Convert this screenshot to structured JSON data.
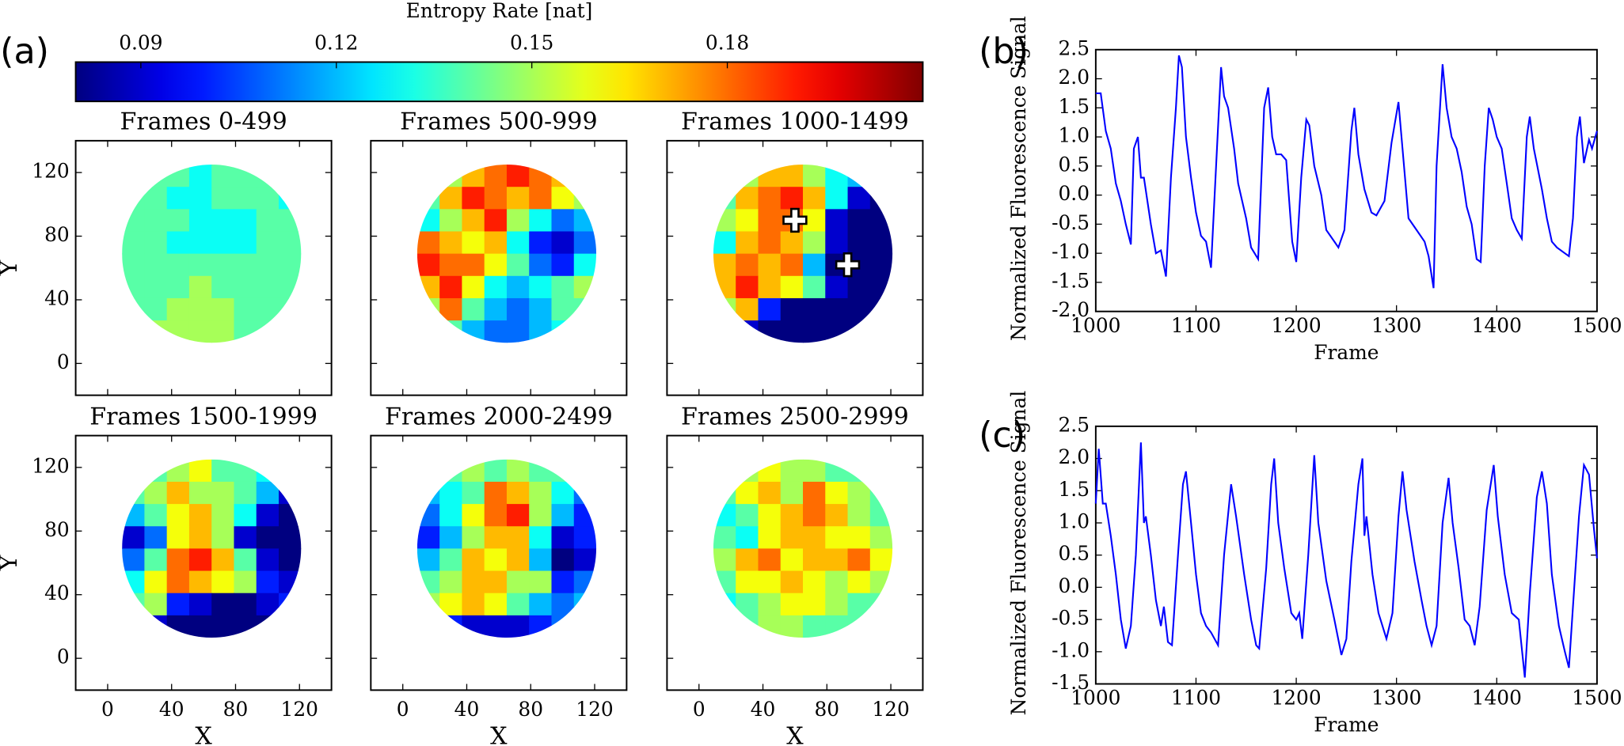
{
  "chart_data": [
    {
      "type": "colorbar",
      "panel_label": "(a)",
      "title": "Entropy Rate [nat]",
      "colormap": "jet",
      "clim": [
        0.08,
        0.21
      ],
      "ticks": [
        0.09,
        0.12,
        0.15,
        0.18
      ]
    },
    {
      "type": "heatmap",
      "title": "Frames 0-499",
      "ylabel": "Y",
      "x": [
        16,
        30,
        44,
        58,
        72,
        86,
        100,
        114
      ],
      "y": [
        118,
        104,
        90,
        76,
        62,
        48,
        34,
        20
      ],
      "xlim": [
        -20,
        140
      ],
      "ylim": [
        -20,
        140
      ],
      "xticks": [
        0,
        40,
        80,
        120
      ],
      "yticks": [
        0,
        40,
        80,
        120
      ],
      "values": [
        [
          null,
          0.14,
          0.14,
          0.13,
          0.14,
          0.14,
          0.14,
          null
        ],
        [
          0.14,
          0.14,
          0.13,
          0.13,
          0.14,
          0.14,
          0.14,
          0.13
        ],
        [
          0.14,
          0.14,
          0.14,
          0.13,
          0.13,
          0.13,
          0.14,
          0.14
        ],
        [
          0.14,
          0.14,
          0.13,
          0.13,
          0.13,
          0.13,
          0.14,
          0.14
        ],
        [
          0.14,
          0.14,
          0.14,
          0.14,
          0.14,
          0.14,
          0.14,
          0.14
        ],
        [
          0.14,
          0.14,
          0.14,
          0.15,
          0.14,
          0.14,
          0.14,
          0.14
        ],
        [
          0.14,
          0.14,
          0.15,
          0.15,
          0.15,
          0.14,
          0.14,
          0.14
        ],
        [
          null,
          0.15,
          0.15,
          0.15,
          0.15,
          0.14,
          0.14,
          null
        ]
      ]
    },
    {
      "type": "heatmap",
      "title": "Frames 500-999",
      "x": [
        16,
        30,
        44,
        58,
        72,
        86,
        100,
        114
      ],
      "y": [
        118,
        104,
        90,
        76,
        62,
        48,
        34,
        20
      ],
      "xlim": [
        -20,
        140
      ],
      "ylim": [
        -20,
        140
      ],
      "xticks": [
        0,
        40,
        80,
        120
      ],
      "yticks": [
        0,
        40,
        80,
        120
      ],
      "values": [
        [
          null,
          0.15,
          0.17,
          0.18,
          0.19,
          0.18,
          0.17,
          null
        ],
        [
          0.14,
          0.17,
          0.19,
          0.18,
          0.17,
          0.18,
          0.16,
          0.15
        ],
        [
          0.13,
          0.15,
          0.17,
          0.19,
          0.15,
          0.13,
          0.11,
          0.12
        ],
        [
          0.18,
          0.17,
          0.16,
          0.17,
          0.13,
          0.1,
          0.09,
          0.11
        ],
        [
          0.19,
          0.18,
          0.18,
          0.16,
          0.14,
          0.11,
          0.1,
          0.13
        ],
        [
          0.17,
          0.19,
          0.16,
          0.13,
          0.12,
          0.13,
          0.14,
          0.15
        ],
        [
          0.15,
          0.18,
          0.14,
          0.12,
          0.11,
          0.12,
          0.14,
          0.14
        ],
        [
          null,
          0.14,
          0.12,
          0.11,
          0.11,
          0.12,
          0.13,
          null
        ]
      ]
    },
    {
      "type": "heatmap",
      "title": "Frames 1000-1499",
      "x": [
        16,
        30,
        44,
        58,
        72,
        86,
        100,
        114
      ],
      "y": [
        118,
        104,
        90,
        76,
        62,
        48,
        34,
        20
      ],
      "xlim": [
        -20,
        140
      ],
      "ylim": [
        -20,
        140
      ],
      "xticks": [
        0,
        40,
        80,
        120
      ],
      "yticks": [
        0,
        40,
        80,
        120
      ],
      "values": [
        [
          null,
          0.15,
          0.17,
          0.17,
          0.15,
          0.13,
          0.12,
          null
        ],
        [
          0.14,
          0.17,
          0.18,
          0.19,
          0.17,
          0.13,
          0.09,
          0.08
        ],
        [
          0.15,
          0.16,
          0.18,
          0.18,
          0.16,
          0.09,
          0.08,
          0.08
        ],
        [
          0.13,
          0.17,
          0.18,
          0.17,
          0.15,
          0.09,
          0.08,
          0.08
        ],
        [
          0.17,
          0.18,
          0.17,
          0.18,
          0.12,
          0.08,
          0.08,
          0.08
        ],
        [
          0.17,
          0.19,
          0.17,
          0.16,
          0.14,
          0.09,
          0.08,
          0.08
        ],
        [
          0.15,
          0.17,
          0.1,
          0.08,
          0.08,
          0.08,
          0.08,
          0.08
        ],
        [
          null,
          0.09,
          0.08,
          0.08,
          0.08,
          0.08,
          0.08,
          null
        ]
      ]
    },
    {
      "type": "heatmap",
      "title": "Frames 1500-1999",
      "xlabel": "X",
      "ylabel": "Y",
      "x": [
        16,
        30,
        44,
        58,
        72,
        86,
        100,
        114
      ],
      "y": [
        118,
        104,
        90,
        76,
        62,
        48,
        34,
        20
      ],
      "xlim": [
        -20,
        140
      ],
      "ylim": [
        -20,
        140
      ],
      "xticks": [
        0,
        40,
        80,
        120
      ],
      "yticks": [
        0,
        40,
        80,
        120
      ],
      "values": [
        [
          null,
          0.14,
          0.15,
          0.16,
          0.14,
          0.14,
          0.13,
          null
        ],
        [
          0.14,
          0.15,
          0.17,
          0.15,
          0.15,
          0.14,
          0.12,
          0.09
        ],
        [
          0.12,
          0.14,
          0.16,
          0.17,
          0.15,
          0.13,
          0.09,
          0.08
        ],
        [
          0.09,
          0.11,
          0.16,
          0.17,
          0.15,
          0.09,
          0.08,
          0.08
        ],
        [
          0.11,
          0.14,
          0.18,
          0.19,
          0.17,
          0.14,
          0.09,
          0.08
        ],
        [
          0.13,
          0.16,
          0.18,
          0.17,
          0.16,
          0.15,
          0.1,
          0.09
        ],
        [
          0.14,
          0.15,
          0.1,
          0.09,
          0.08,
          0.08,
          0.09,
          0.1
        ],
        [
          null,
          0.09,
          0.08,
          0.08,
          0.08,
          0.08,
          0.08,
          null
        ]
      ]
    },
    {
      "type": "heatmap",
      "title": "Frames 2000-2499",
      "xlabel": "X",
      "x": [
        16,
        30,
        44,
        58,
        72,
        86,
        100,
        114
      ],
      "y": [
        118,
        104,
        90,
        76,
        62,
        48,
        34,
        20
      ],
      "xlim": [
        -20,
        140
      ],
      "ylim": [
        -20,
        140
      ],
      "xticks": [
        0,
        40,
        80,
        120
      ],
      "yticks": [
        0,
        40,
        80,
        120
      ],
      "values": [
        [
          null,
          0.14,
          0.15,
          0.14,
          0.15,
          0.14,
          0.14,
          null
        ],
        [
          0.12,
          0.13,
          0.14,
          0.18,
          0.17,
          0.15,
          0.13,
          0.11
        ],
        [
          0.11,
          0.13,
          0.16,
          0.18,
          0.19,
          0.15,
          0.12,
          0.1
        ],
        [
          0.1,
          0.12,
          0.15,
          0.17,
          0.17,
          0.13,
          0.09,
          0.1
        ],
        [
          0.12,
          0.14,
          0.17,
          0.16,
          0.17,
          0.12,
          0.08,
          0.09
        ],
        [
          0.14,
          0.15,
          0.17,
          0.17,
          0.15,
          0.15,
          0.1,
          0.11
        ],
        [
          0.15,
          0.16,
          0.17,
          0.16,
          0.14,
          0.12,
          0.11,
          0.12
        ],
        [
          null,
          0.1,
          0.09,
          0.09,
          0.09,
          0.1,
          0.11,
          null
        ]
      ]
    },
    {
      "type": "heatmap",
      "title": "Frames 2500-2999",
      "xlabel": "X",
      "x": [
        16,
        30,
        44,
        58,
        72,
        86,
        100,
        114
      ],
      "y": [
        118,
        104,
        90,
        76,
        62,
        48,
        34,
        20
      ],
      "xlim": [
        -20,
        140
      ],
      "ylim": [
        -20,
        140
      ],
      "xticks": [
        0,
        40,
        80,
        120
      ],
      "yticks": [
        0,
        40,
        80,
        120
      ],
      "values": [
        [
          null,
          0.15,
          0.16,
          0.15,
          0.15,
          0.14,
          0.14,
          null
        ],
        [
          0.14,
          0.16,
          0.17,
          0.15,
          0.18,
          0.16,
          0.15,
          0.14
        ],
        [
          0.13,
          0.14,
          0.16,
          0.17,
          0.18,
          0.17,
          0.15,
          0.14
        ],
        [
          0.14,
          0.13,
          0.16,
          0.17,
          0.17,
          0.16,
          0.16,
          0.15
        ],
        [
          0.15,
          0.17,
          0.18,
          0.16,
          0.17,
          0.17,
          0.18,
          0.16
        ],
        [
          0.14,
          0.16,
          0.16,
          0.17,
          0.16,
          0.15,
          0.16,
          0.15
        ],
        [
          0.13,
          0.14,
          0.15,
          0.16,
          0.16,
          0.15,
          0.14,
          0.14
        ],
        [
          null,
          0.14,
          0.15,
          0.15,
          0.14,
          0.14,
          0.14,
          null
        ]
      ]
    },
    {
      "type": "line",
      "panel_label": "(b)",
      "xlabel": "Frame",
      "ylabel": "Normalized Fluorescence Signal",
      "color": "#0000ff",
      "xlim": [
        1000,
        1500
      ],
      "ylim": [
        -2,
        2.5
      ],
      "xticks": [
        1000,
        1100,
        1200,
        1300,
        1400,
        1500
      ],
      "yticks": [
        2.5,
        {
          "value": 2,
          "label": "2.0"
        },
        1.5,
        {
          "value": 1,
          "label": "1.0"
        },
        0.5,
        {
          "value": 0,
          "label": "0.0"
        },
        -0.5,
        {
          "value": -1,
          "label": "-1.0"
        },
        -1.5,
        {
          "value": -2,
          "label": "-2.0"
        }
      ],
      "x": [
        1000,
        1005,
        1010,
        1015,
        1020,
        1025,
        1030,
        1035,
        1038,
        1042,
        1045,
        1048,
        1055,
        1060,
        1065,
        1070,
        1075,
        1080,
        1083,
        1086,
        1090,
        1095,
        1100,
        1105,
        1110,
        1115,
        1120,
        1125,
        1128,
        1132,
        1138,
        1142,
        1150,
        1155,
        1162,
        1168,
        1172,
        1176,
        1180,
        1185,
        1190,
        1196,
        1200,
        1205,
        1210,
        1213,
        1218,
        1225,
        1230,
        1238,
        1242,
        1248,
        1255,
        1258,
        1262,
        1268,
        1275,
        1280,
        1288,
        1295,
        1302,
        1306,
        1312,
        1320,
        1328,
        1332,
        1337,
        1340,
        1346,
        1350,
        1355,
        1360,
        1365,
        1370,
        1375,
        1380,
        1384,
        1388,
        1392,
        1396,
        1400,
        1405,
        1410,
        1415,
        1420,
        1425,
        1430,
        1433,
        1437,
        1445,
        1450,
        1455,
        1460,
        1468,
        1472,
        1476,
        1480,
        1483,
        1487,
        1492,
        1495,
        1500
      ],
      "values": [
        1.75,
        1.75,
        1.1,
        0.8,
        0.2,
        -0.1,
        -0.5,
        -0.85,
        0.8,
        1.0,
        0.3,
        0.3,
        -0.5,
        -1.0,
        -0.95,
        -1.4,
        0.3,
        1.5,
        2.4,
        2.2,
        1.0,
        0.3,
        -0.3,
        -0.7,
        -0.8,
        -1.25,
        0.5,
        2.2,
        1.7,
        1.5,
        0.8,
        0.2,
        -0.4,
        -0.9,
        -1.1,
        1.5,
        1.85,
        1.0,
        0.7,
        0.7,
        0.6,
        -0.8,
        -1.15,
        0.3,
        1.3,
        1.2,
        0.5,
        0,
        -0.6,
        -0.8,
        -0.9,
        -0.6,
        1.1,
        1.5,
        0.7,
        0.1,
        -0.3,
        -0.35,
        -0.1,
        0.9,
        1.6,
        0.8,
        -0.4,
        -0.6,
        -0.8,
        -1.05,
        -1.6,
        0.5,
        2.25,
        1.5,
        1.0,
        0.8,
        0.4,
        -0.2,
        -0.5,
        -1.1,
        -1.15,
        0.5,
        1.5,
        1.3,
        1.0,
        0.8,
        0.2,
        -0.4,
        -0.6,
        -0.75,
        1.0,
        1.35,
        0.8,
        0.1,
        -0.4,
        -0.8,
        -0.9,
        -1.0,
        -1.05,
        -0.4,
        1.0,
        1.35,
        0.55,
        0.95,
        0.8,
        1.1
      ]
    },
    {
      "type": "line",
      "panel_label": "(c)",
      "xlabel": "Frame",
      "ylabel": "Normalized Fluorescence Signal",
      "color": "#0000ff",
      "xlim": [
        1000,
        1500
      ],
      "ylim": [
        -1.5,
        2.5
      ],
      "xticks": [
        1000,
        1100,
        1200,
        1300,
        1400,
        1500
      ],
      "yticks": [
        2.5,
        {
          "value": 2,
          "label": "2.0"
        },
        1.5,
        {
          "value": 1,
          "label": "1.0"
        },
        0.5,
        {
          "value": 0,
          "label": "0.0"
        },
        -0.5,
        {
          "value": -1,
          "label": "-1.0"
        },
        -1.5
      ],
      "x": [
        1000,
        1003,
        1007,
        1010,
        1015,
        1020,
        1025,
        1030,
        1035,
        1040,
        1045,
        1048,
        1050,
        1055,
        1060,
        1065,
        1068,
        1072,
        1076,
        1082,
        1087,
        1090,
        1095,
        1100,
        1105,
        1110,
        1115,
        1122,
        1128,
        1135,
        1140,
        1148,
        1155,
        1160,
        1163,
        1170,
        1175,
        1178,
        1182,
        1188,
        1195,
        1200,
        1203,
        1206,
        1212,
        1218,
        1222,
        1230,
        1238,
        1245,
        1250,
        1255,
        1262,
        1266,
        1268,
        1270,
        1276,
        1282,
        1290,
        1296,
        1302,
        1306,
        1310,
        1318,
        1325,
        1330,
        1335,
        1340,
        1346,
        1352,
        1356,
        1362,
        1368,
        1373,
        1378,
        1383,
        1390,
        1397,
        1401,
        1408,
        1415,
        1422,
        1428,
        1433,
        1440,
        1445,
        1450,
        1455,
        1462,
        1468,
        1472,
        1476,
        1482,
        1487,
        1492,
        1497,
        1500
      ],
      "values": [
        1.3,
        2.15,
        1.3,
        1.3,
        0.8,
        0.2,
        -0.5,
        -0.95,
        -0.6,
        0.5,
        2.25,
        1.0,
        1.1,
        0.5,
        -0.2,
        -0.6,
        -0.3,
        -0.85,
        -0.9,
        0.5,
        1.6,
        1.8,
        1.0,
        0.2,
        -0.4,
        -0.6,
        -0.7,
        -0.9,
        0.5,
        1.6,
        1.1,
        0.2,
        -0.5,
        -0.9,
        -0.95,
        0.3,
        1.6,
        2.0,
        1.0,
        0.3,
        -0.4,
        -0.5,
        -0.4,
        -0.8,
        0.5,
        2.05,
        1.0,
        0.1,
        -0.5,
        -1.05,
        -0.8,
        0.4,
        1.6,
        2.0,
        0.8,
        1.1,
        0.2,
        -0.4,
        -0.8,
        -0.4,
        1.1,
        1.8,
        1.2,
        0.4,
        -0.2,
        -0.6,
        -0.9,
        -0.6,
        1.0,
        1.7,
        1.0,
        0.3,
        -0.5,
        -0.6,
        -0.9,
        -0.3,
        1.2,
        1.9,
        1.1,
        0.2,
        -0.4,
        -0.5,
        -1.4,
        -0.1,
        1.4,
        1.8,
        1.3,
        0.2,
        -0.6,
        -1.0,
        -1.25,
        -0.3,
        1.1,
        1.9,
        1.75,
        0.9,
        0.45
      ]
    }
  ]
}
